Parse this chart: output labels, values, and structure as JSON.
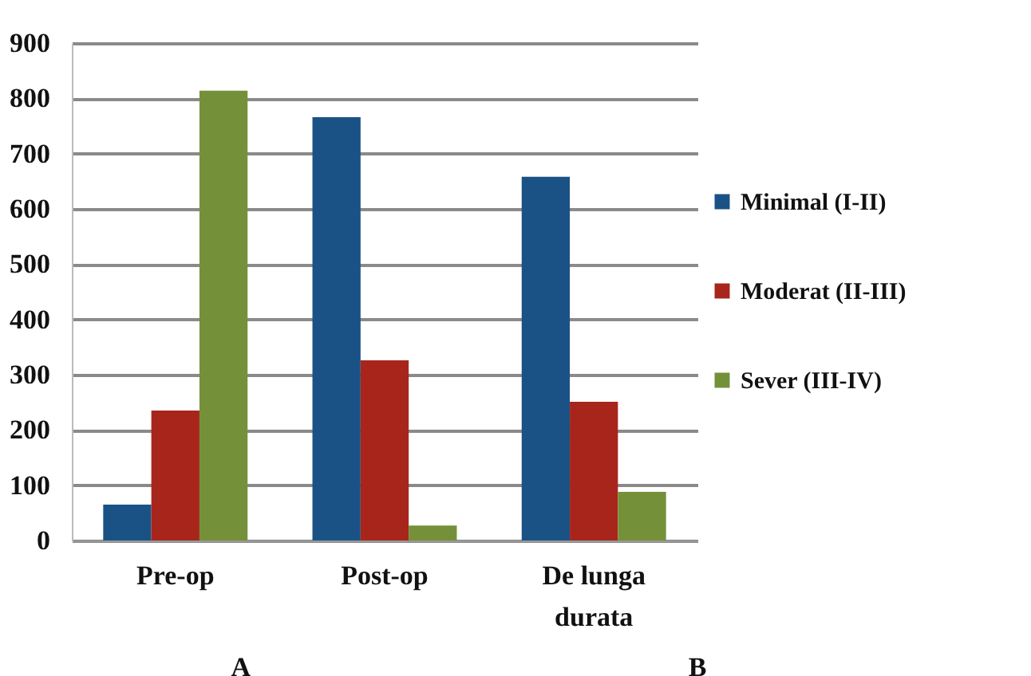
{
  "chart_data": {
    "type": "bar",
    "categories": [
      "Pre-op",
      "Post-op",
      "De lunga durata"
    ],
    "series": [
      {
        "name": "Minimal (I-II)",
        "color": "#1a5286",
        "values": [
          65,
          766,
          658
        ]
      },
      {
        "name": "Moderat (II-III)",
        "color": "#a8251c",
        "values": [
          235,
          326,
          251
        ]
      },
      {
        "name": "Sever (III-IV)",
        "color": "#74913a",
        "values": [
          814,
          27,
          88
        ]
      }
    ],
    "ylim": [
      0,
      900
    ],
    "yticks": [
      0,
      100,
      200,
      300,
      400,
      500,
      600,
      700,
      800,
      900
    ],
    "grid": "y",
    "legend": "right",
    "annotations": [
      "A",
      "B"
    ]
  }
}
